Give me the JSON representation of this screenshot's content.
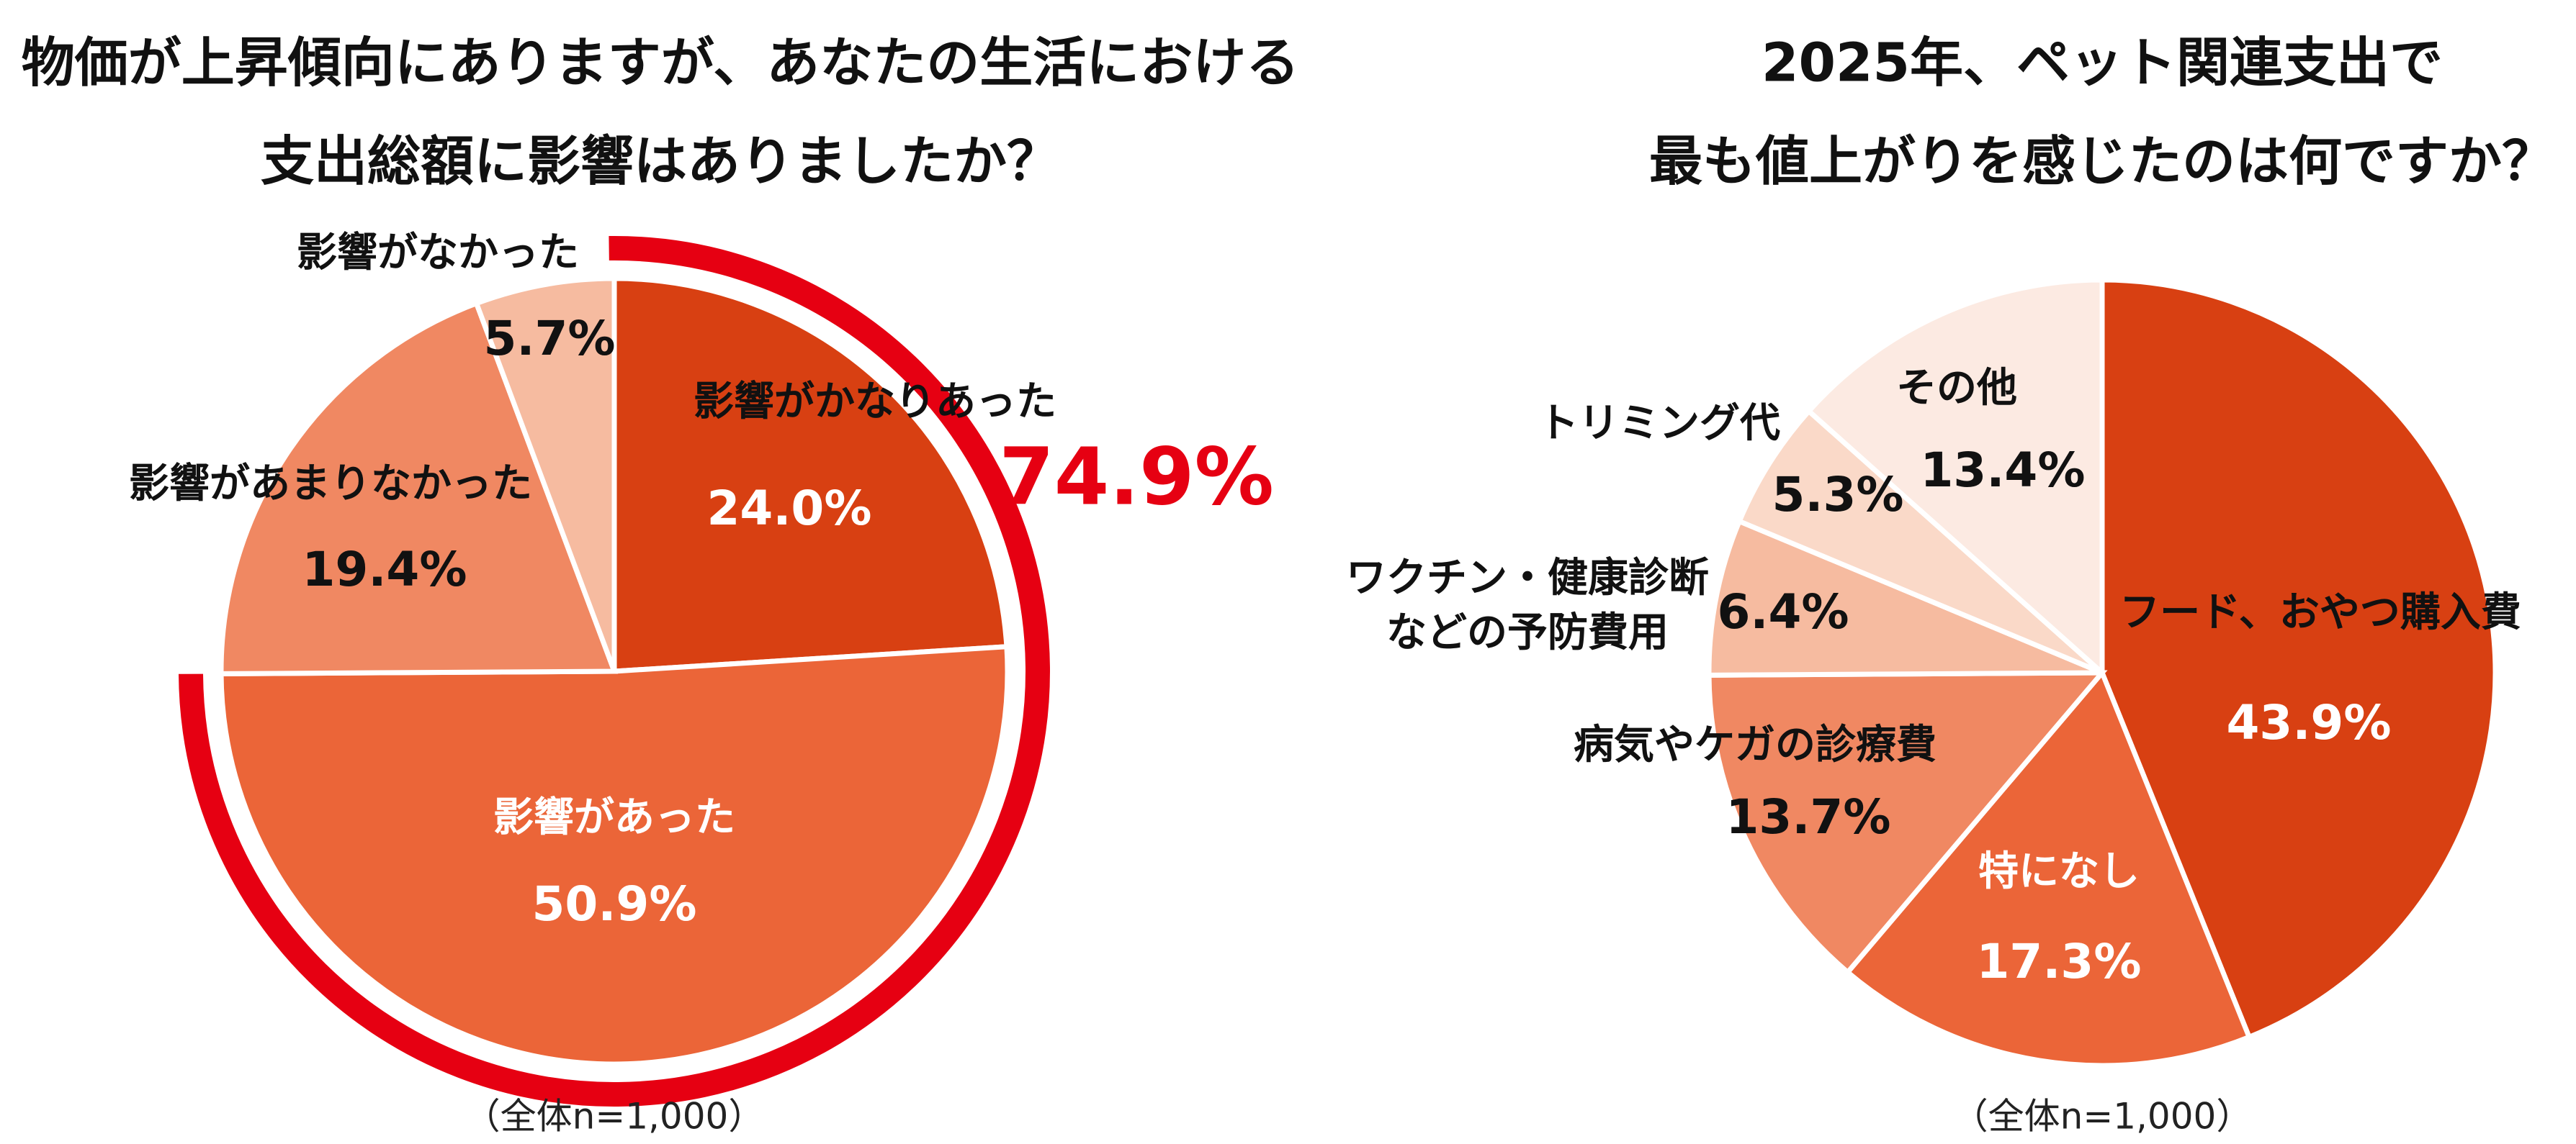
{
  "chart_data": [
    {
      "type": "pie",
      "title_lines": [
        "物価が上昇傾向にありますが、あなたの生活における",
        "支出総額に影響はありましたか？"
      ],
      "slices": [
        {
          "label": "影響がかなりあった",
          "value": 24.0,
          "value_label": "24.0%",
          "color": "#D84012"
        },
        {
          "label": "影響があった",
          "value": 50.9,
          "value_label": "50.9%",
          "color": "#EB6538"
        },
        {
          "label": "影響があまりなかった",
          "value": 19.4,
          "value_label": "19.4%",
          "color": "#F08862"
        },
        {
          "label": "影響がなかった",
          "value": 5.7,
          "value_label": "5.7%",
          "color": "#F6BBA0"
        }
      ],
      "highlight": {
        "value": 74.9,
        "label": "74.9%",
        "color": "#E60012"
      },
      "note": "（全体n=1,000）",
      "start": "top",
      "direction": "clockwise"
    },
    {
      "type": "pie",
      "title_lines": [
        "2025年、ペット関連支出で",
        "最も値上がりを感じたのは何ですか？"
      ],
      "slices": [
        {
          "label": "フード、おやつ購入費",
          "value": 43.9,
          "value_label": "43.9%",
          "color": "#D84012"
        },
        {
          "label": "特になし",
          "value": 17.3,
          "value_label": "17.3%",
          "color": "#EB6538"
        },
        {
          "label": "病気やケガの診療費",
          "value": 13.7,
          "value_label": "13.7%",
          "color": "#F08862"
        },
        {
          "label": "ワクチン・健康診断\nなどの予防費用",
          "label_lines": [
            "ワクチン・健康診断",
            "などの予防費用"
          ],
          "value": 6.4,
          "value_label": "6.4%",
          "color": "#F6BBA0"
        },
        {
          "label": "トリミング代",
          "value": 5.3,
          "value_label": "5.3%",
          "color": "#FAD9C8"
        },
        {
          "label": "その他",
          "value": 13.4,
          "value_label": "13.4%",
          "color": "#FCEAE2"
        }
      ],
      "note": "（全体n=1,000）",
      "start": "top",
      "direction": "clockwise"
    }
  ]
}
